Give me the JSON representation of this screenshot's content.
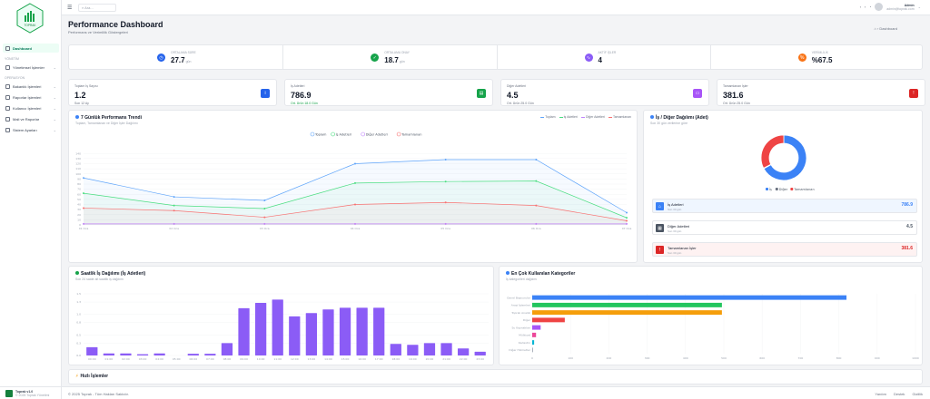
{
  "sidebar": {
    "logo_text": "TOPRAK",
    "items": [
      {
        "label": "Dashboard",
        "active": true,
        "chevron": false
      },
      {
        "section": "YÖNETİM"
      },
      {
        "label": "Yönetimsel İşlemler",
        "chevron": true
      },
      {
        "section": "OPERASYON"
      },
      {
        "label": "Bakanlık İşlemleri",
        "chevron": true
      },
      {
        "label": "Raporlar İşlemleri",
        "chevron": true
      },
      {
        "label": "Kullanıcı İşlemleri",
        "chevron": true
      },
      {
        "label": "Mali ve Raporlar",
        "chevron": true
      },
      {
        "label": "Sistem Ayarları",
        "chevron": true
      }
    ],
    "footer_title": "Toprak v1.0",
    "footer_sub": "© 2025 Toprak Yönetimi"
  },
  "topbar": {
    "search_placeholder": "Ara...",
    "user_name": "Admin",
    "user_email": "admin@toprak.com"
  },
  "header": {
    "title": "Performance Dashboard",
    "subtitle": "Performans ve Verimlilik Göstergeleri",
    "breadcrumb": "Dashboard"
  },
  "stats": [
    {
      "label": "ORTALAMA SÜRE",
      "value": "27.7",
      "unit": "gün",
      "color": "#2563eb",
      "icon": "clock-icon",
      "glyph": "◷"
    },
    {
      "label": "ORTALAMA ONAY",
      "value": "18.7",
      "unit": "gün",
      "color": "#16a34a",
      "icon": "check-icon",
      "glyph": "✓"
    },
    {
      "label": "AKTİF İŞLER",
      "value": "4",
      "unit": "",
      "color": "#8b5cf6",
      "icon": "wave-icon",
      "glyph": "∿"
    },
    {
      "label": "VERİMLİLİK",
      "value": "%67.5",
      "unit": "",
      "color": "#f97316",
      "icon": "percent-icon",
      "glyph": "%"
    }
  ],
  "kpis": [
    {
      "label": "Toplam İş Sayısı",
      "value": "1.2",
      "sub": "Son 12 Ay",
      "sub_green": false,
      "color": "#2563eb",
      "icon": "info-icon",
      "glyph": "i"
    },
    {
      "label": "İş Adetleri",
      "value": "786.9",
      "sub": "Ort. Ürün 18.0 Gün",
      "sub_green": true,
      "color": "#16a34a",
      "icon": "wallet-icon",
      "glyph": "▤"
    },
    {
      "label": "Diğer Adetleri",
      "value": "4.5",
      "sub": "Ort. Ürün 25.0 Gün",
      "sub_green": false,
      "color": "#a855f7",
      "icon": "monitor-icon",
      "glyph": "▭"
    },
    {
      "label": "Tamamlanan İşler",
      "value": "381.6",
      "sub": "Ort. Ürün 25.0 Gün",
      "sub_green": false,
      "color": "#dc2626",
      "icon": "alert-icon",
      "glyph": "!"
    }
  ],
  "trend_card": {
    "title": "7 Günlük Performans Trendi",
    "subtitle": "Toplam, Tamamlanan ve Diğer İşler Dağılımı",
    "legend_top": [
      "Toplam",
      "İş Adetleri",
      "Diğer Adetleri",
      "Tamamlanan"
    ]
  },
  "pie_card": {
    "title": "İş / Diğer Dağılımı (Adet)",
    "subtitle": "Son 30 gün verilerine göre",
    "legend": [
      "İş",
      "Diğer",
      "Tamamlanan"
    ],
    "items": [
      {
        "title": "İş Adetleri",
        "sub": "Son 30 gün",
        "value": "786.9",
        "sub2": "",
        "color": "#3b82f6",
        "bg": "#eff6ff",
        "icon": "home-icon",
        "glyph": "⌂"
      },
      {
        "title": "Diğer Adetleri",
        "sub": "Son 30 gün",
        "value": "4.5",
        "sub2": "",
        "color": "#4b5563",
        "bg": "#ffffff",
        "icon": "box-icon",
        "glyph": "▦"
      },
      {
        "title": "Tamamlanan İşler",
        "sub": "Son 30 gün",
        "value": "381.6",
        "sub2": "",
        "color": "#dc2626",
        "bg": "#fef2f2",
        "icon": "alert-icon",
        "glyph": "!"
      }
    ]
  },
  "monthly_card": {
    "title": "Saatlik İş Dağılımı (İş Adetleri)",
    "subtitle": "Son 24 saate ait saatlik iş dağılımı"
  },
  "category_card": {
    "title": "En Çok Kullanılan Kategoriler",
    "subtitle": "İş kategorileri dağılımı"
  },
  "bottom_card": {
    "title": "Hızlı İşlemler"
  },
  "footer": {
    "left": "© 2025 Toprak - Tüm Hakları Saklıdır.",
    "links": [
      "Yardım",
      "Destek",
      "Gizlilik"
    ]
  },
  "colors": {
    "accent": "#16a34a",
    "blue": "#3b82f6",
    "green": "#22c55e",
    "red": "#ef4444",
    "purple": "#8b5cf6",
    "orange": "#f59e0b"
  },
  "chart_data": [
    {
      "type": "line",
      "title": "7 Günlük Performans Trendi",
      "categories": [
        "01 Oca",
        "02 Oca",
        "03 Oca",
        "04 Oca",
        "05 Oca",
        "06 Oca",
        "07 Oca"
      ],
      "ylim": [
        0,
        160
      ],
      "yticks": [
        0,
        10,
        20,
        30,
        40,
        50,
        60,
        70,
        80,
        90,
        100,
        110,
        120,
        130,
        140
      ],
      "legend_position": "top",
      "series": [
        {
          "name": "Toplam",
          "color": "#60a5fa",
          "values": [
            92,
            55,
            48,
            120,
            128,
            128,
            24
          ]
        },
        {
          "name": "İş Adetleri",
          "color": "#4ade80",
          "values": [
            62,
            38,
            32,
            82,
            85,
            86,
            14
          ]
        },
        {
          "name": "Diğer Adetleri",
          "color": "#c084fc",
          "values": [
            2,
            2,
            2,
            2,
            2,
            2,
            2
          ]
        },
        {
          "name": "Tamamlanan",
          "color": "#f87171",
          "values": [
            33,
            28,
            15,
            40,
            44,
            38,
            8
          ]
        }
      ]
    },
    {
      "type": "pie",
      "title": "İş / Diğer Dağılımı (Adet)",
      "labels": [
        "İş",
        "Diğer",
        "Tamamlanan"
      ],
      "values": [
        786.9,
        4.5,
        381.6
      ],
      "colors": [
        "#3b82f6",
        "#6b7280",
        "#ef4444"
      ]
    },
    {
      "type": "bar",
      "title": "Saatlik İş Dağılımı (İş Adetleri)",
      "categories": [
        "00:00",
        "01:00",
        "02:00",
        "03:00",
        "04:00",
        "05:00",
        "06:00",
        "07:00",
        "08:00",
        "09:00",
        "10:00",
        "11:00",
        "12:00",
        "13:00",
        "14:00",
        "15:00",
        "16:00",
        "17:00",
        "18:00",
        "19:00",
        "20:00",
        "21:00",
        "22:00",
        "23:00"
      ],
      "values": [
        0.2,
        0.05,
        0.05,
        0.03,
        0.05,
        0,
        0.04,
        0.04,
        0.3,
        1.15,
        1.28,
        1.36,
        0.95,
        1.03,
        1.12,
        1.16,
        1.16,
        1.16,
        0.28,
        0.26,
        0.3,
        0.3,
        0.17,
        0.09
      ],
      "ylim": [
        0,
        1.5
      ],
      "yticks": [
        "0.0",
        "0.3",
        "0.5",
        "0.8",
        "1.0",
        "1.3",
        "1.5"
      ],
      "color": "#8b5cf6"
    },
    {
      "type": "bar",
      "orientation": "horizontal",
      "title": "En Çok Kullanılan Kategoriler",
      "categories": [
        "Genel Başvurular",
        "Arazi İşlemleri",
        "Toprak Analizi",
        "Diğer",
        "Su Kaynakları",
        "Mülkiyet",
        "Kadastro",
        "Diğer Hizmetler"
      ],
      "values": [
        820,
        495,
        495,
        85,
        22,
        10,
        5,
        2
      ],
      "colors": [
        "#3b82f6",
        "#22c55e",
        "#f59e0b",
        "#ef4444",
        "#a855f7",
        "#ec4899",
        "#06b6d4",
        "#9ca3af"
      ],
      "xlim": [
        0,
        1000
      ],
      "xticks": [
        "0",
        "100",
        "200",
        "300",
        "400",
        "500",
        "600",
        "700",
        "800",
        "900",
        "1000"
      ]
    }
  ]
}
